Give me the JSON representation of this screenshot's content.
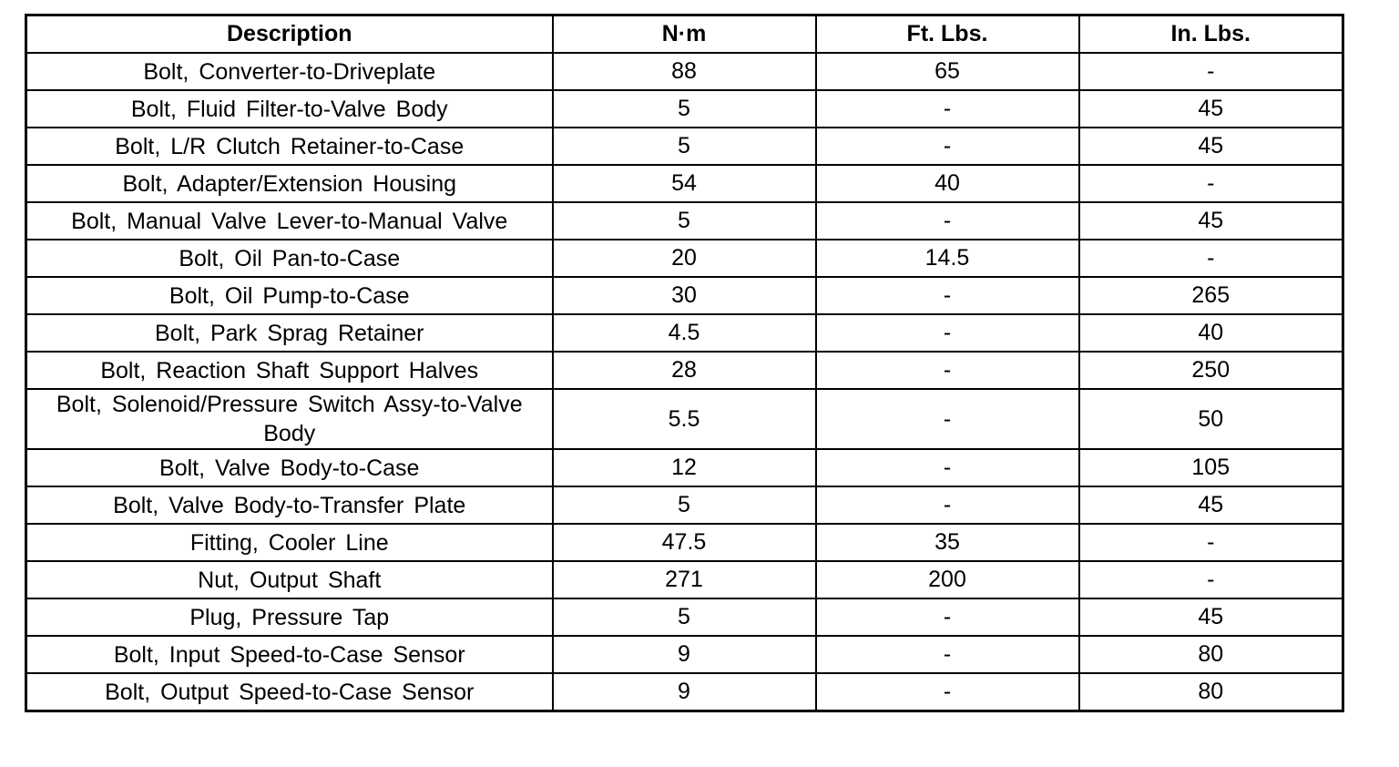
{
  "table": {
    "header": [
      "Description",
      "N·m",
      "Ft. Lbs.",
      "In. Lbs."
    ],
    "rows": [
      [
        "Bolt, Converter-to-Driveplate",
        88,
        65,
        "-"
      ],
      [
        "Bolt, Fluid Filter-to-Valve Body",
        5,
        "-",
        45
      ],
      [
        "Bolt, L/R Clutch Retainer-to-Case",
        5,
        "-",
        45
      ],
      [
        "Bolt, Adapter/Extension Housing",
        54,
        40,
        "-"
      ],
      [
        "Bolt, Manual Valve Lever-to-Manual Valve",
        5,
        "-",
        45
      ],
      [
        "Bolt, Oil Pan-to-Case",
        20,
        14.5,
        "-"
      ],
      [
        "Bolt, Oil Pump-to-Case",
        30,
        "-",
        265
      ],
      [
        "Bolt, Park Sprag Retainer",
        4.5,
        "-",
        40
      ],
      [
        "Bolt, Reaction Shaft Support Halves",
        28,
        "-",
        250
      ],
      [
        "Bolt, Solenoid/Pressure Switch Assy-to-Valve Body",
        5.5,
        "-",
        50
      ],
      [
        "Bolt, Valve Body-to-Case",
        12,
        "-",
        105
      ],
      [
        "Bolt, Valve Body-to-Transfer Plate",
        5,
        "-",
        45
      ],
      [
        "Fitting, Cooler Line",
        47.5,
        35,
        "-"
      ],
      [
        "Nut, Output Shaft",
        271,
        200,
        "-"
      ],
      [
        "Plug, Pressure Tap",
        5,
        "-",
        45
      ],
      [
        "Bolt, Input Speed-to-Case Sensor",
        9,
        "-",
        80
      ],
      [
        "Bolt, Output Speed-to-Case Sensor",
        9,
        "-",
        80
      ]
    ]
  }
}
